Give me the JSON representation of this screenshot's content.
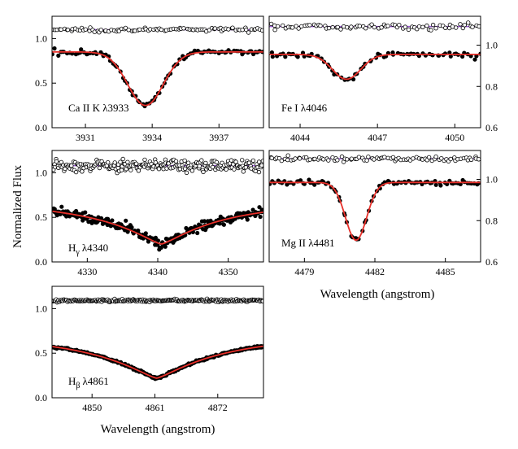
{
  "colors": {
    "model": "#e8302a",
    "residual_line": "#9b59d6",
    "data": "#000000",
    "frame": "#000000"
  },
  "chart_data": {
    "type": "line",
    "description_title": "",
    "ylabel": "Normalized Flux",
    "xlabel": "Wavelength (angstrom)",
    "panels": [
      {
        "id": "ca",
        "label": "Ca II K λ3933",
        "label_parts": {
          "species": "Ca II K",
          "lambda": "λ3933"
        },
        "xlim": [
          3929.5,
          3939.0
        ],
        "ylim": [
          0.0,
          1.25
        ],
        "xticks": [
          3931,
          3934,
          3937
        ],
        "xtick_labels": [
          "3931",
          "3934",
          "3937"
        ],
        "yticks": [
          0.0,
          0.5,
          1.0
        ],
        "ytick_labels": [
          "0.0",
          "0.5",
          "1.0"
        ],
        "y_axis_side": "left",
        "residual_level": 1.1,
        "line_center": 3933.7,
        "continuum": 0.85,
        "depth": 0.6,
        "width": 0.8,
        "profile": "gaussian",
        "scatter": 0.012,
        "residual_scatter": 0.012,
        "n_points": 95
      },
      {
        "id": "fe",
        "label": "Fe I λ4046",
        "label_parts": {
          "species": "Fe I",
          "lambda": "λ4046"
        },
        "xlim": [
          4042.8,
          4051.0
        ],
        "ylim": [
          0.6,
          1.14
        ],
        "xticks": [
          4044,
          4047,
          4050
        ],
        "xtick_labels": [
          "4044",
          "4047",
          "4050"
        ],
        "yticks": [
          0.6,
          0.8,
          1.0
        ],
        "ytick_labels": [
          "0.6",
          "0.8",
          "1.0"
        ],
        "y_axis_side": "right",
        "residual_level": 1.09,
        "line_center": 4045.8,
        "continuum": 0.955,
        "depth": 0.12,
        "width": 0.55,
        "profile": "gaussian",
        "scatter": 0.007,
        "residual_scatter": 0.008,
        "n_points": 75
      },
      {
        "id": "hg",
        "label": "Hγ λ4340",
        "label_parts": {
          "species": "H",
          "subscript": "γ",
          "lambda": "λ4340"
        },
        "xlim": [
          4325.0,
          4355.0
        ],
        "ylim": [
          0.0,
          1.25
        ],
        "xticks": [
          4330,
          4340,
          4350
        ],
        "xtick_labels": [
          "4330",
          "4340",
          "4350"
        ],
        "yticks": [
          0.0,
          0.5,
          1.0
        ],
        "ytick_labels": [
          "0.0",
          "0.5",
          "1.0"
        ],
        "y_axis_side": "left",
        "residual_level": 1.08,
        "line_center": 4340.5,
        "continuum": 0.75,
        "depth": 0.55,
        "width": 9.0,
        "profile": "lorentzian",
        "scatter": 0.025,
        "residual_scatter": 0.035,
        "n_points": 240
      },
      {
        "id": "mg",
        "label": "Mg II λ4481",
        "label_parts": {
          "species": "Mg II",
          "lambda": "λ4481"
        },
        "xlim": [
          4477.5,
          4486.5
        ],
        "ylim": [
          0.6,
          1.14
        ],
        "xticks": [
          4479,
          4482,
          4485
        ],
        "xtick_labels": [
          "4479",
          "4482",
          "4485"
        ],
        "yticks": [
          0.6,
          0.8,
          1.0
        ],
        "ytick_labels": [
          "0.6",
          "0.8",
          "1.0"
        ],
        "y_axis_side": "right",
        "residual_level": 1.1,
        "line_center": 4481.2,
        "continuum": 0.985,
        "depth": 0.28,
        "width": 0.45,
        "profile": "gaussian",
        "scatter": 0.006,
        "residual_scatter": 0.006,
        "n_points": 90
      },
      {
        "id": "hb",
        "label": "Hβ λ4861",
        "label_parts": {
          "species": "H",
          "subscript": "β",
          "lambda": "λ4861"
        },
        "xlim": [
          4843.0,
          4880.0
        ],
        "ylim": [
          0.0,
          1.25
        ],
        "xticks": [
          4850,
          4861,
          4872
        ],
        "xtick_labels": [
          "4850",
          "4861",
          "4872"
        ],
        "yticks": [
          0.0,
          0.5,
          1.0
        ],
        "ytick_labels": [
          "0.0",
          "0.5",
          "1.0"
        ],
        "y_axis_side": "left",
        "residual_level": 1.09,
        "line_center": 4861.3,
        "continuum": 0.78,
        "depth": 0.56,
        "width": 12.0,
        "profile": "lorentzian",
        "scatter": 0.006,
        "residual_scatter": 0.006,
        "n_points": 280
      }
    ]
  }
}
